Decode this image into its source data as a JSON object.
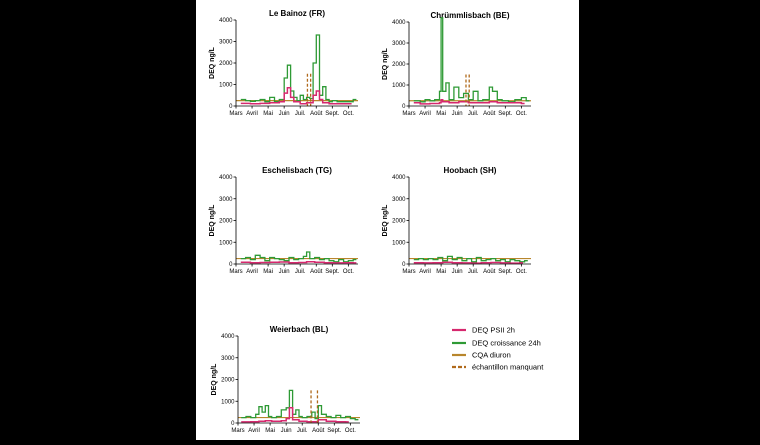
{
  "colors": {
    "psii": "#d6286e",
    "growth": "#2e9a35",
    "cqa": "#b8862c",
    "missing": "#b06a1c",
    "axis": "#000000",
    "background_outer": "#000000",
    "background_figure": "#ffffff"
  },
  "legend": {
    "items": [
      {
        "key": "psii",
        "label": "DEQ PSII 2h"
      },
      {
        "key": "growth",
        "label": "DEQ croissance 24h"
      },
      {
        "key": "cqa",
        "label": "CQA diuron"
      },
      {
        "key": "missing",
        "label": "échantillon manquant"
      }
    ]
  },
  "chart_data": [
    {
      "type": "line",
      "title": "Le Bainoz (FR)",
      "ylabel": "DEQ ng/L",
      "xlabel": "",
      "ylim": [
        0,
        4000
      ],
      "yticks": [
        0,
        1000,
        2000,
        3000,
        4000
      ],
      "xlim": [
        0,
        7.6
      ],
      "xtick_labels": [
        "Mars",
        "Avril",
        "Mai",
        "Juin",
        "Juil.",
        "Août",
        "Sept.",
        "Oct."
      ],
      "cqa": 250,
      "missing": [
        4.45,
        4.65
      ],
      "series": [
        {
          "key": "growth",
          "name": "DEQ croissance 24h",
          "step": true,
          "x": [
            0.3,
            0.6,
            0.9,
            1.2,
            1.5,
            1.8,
            2.1,
            2.4,
            2.7,
            3.0,
            3.2,
            3.4,
            3.6,
            3.8,
            4.0,
            4.2,
            4.4,
            4.6,
            4.8,
            5.0,
            5.2,
            5.4,
            5.6,
            5.8,
            6.0,
            6.3,
            6.6,
            7.0,
            7.3
          ],
          "y": [
            300,
            250,
            220,
            250,
            300,
            200,
            400,
            200,
            300,
            1300,
            1900,
            700,
            400,
            250,
            500,
            300,
            400,
            350,
            2000,
            3300,
            500,
            900,
            300,
            200,
            250,
            200,
            200,
            200,
            300
          ]
        },
        {
          "key": "psii",
          "name": "DEQ PSII 2h",
          "step": true,
          "x": [
            0.3,
            0.9,
            1.5,
            2.1,
            2.7,
            3.0,
            3.2,
            3.4,
            3.6,
            4.0,
            4.4,
            4.8,
            5.0,
            5.2,
            5.4,
            5.8,
            6.3,
            7.0
          ],
          "y": [
            120,
            100,
            120,
            150,
            200,
            600,
            850,
            400,
            200,
            100,
            150,
            500,
            700,
            300,
            150,
            100,
            100,
            100
          ]
        }
      ]
    },
    {
      "type": "line",
      "title": "Chrümmlisbach (BE)",
      "ylabel": "DEQ ng/L",
      "xlabel": "",
      "ylim": [
        0,
        4000
      ],
      "yticks": [
        0,
        1000,
        2000,
        3000,
        4000
      ],
      "xlim": [
        0,
        7.6
      ],
      "xtick_labels": [
        "Mars",
        "Avril",
        "Mai",
        "Juin",
        "Juil.",
        "Août",
        "Sept.",
        "Oct."
      ],
      "cqa": 250,
      "missing": [
        3.55,
        3.75
      ],
      "series": [
        {
          "key": "growth",
          "name": "DEQ croissance 24h",
          "step": true,
          "x": [
            0.3,
            0.7,
            1.0,
            1.3,
            1.6,
            1.9,
            2.0,
            2.1,
            2.3,
            2.5,
            2.8,
            3.1,
            3.4,
            3.7,
            4.0,
            4.3,
            4.6,
            5.0,
            5.2,
            5.5,
            5.8,
            6.2,
            6.6,
            7.0,
            7.3
          ],
          "y": [
            250,
            200,
            300,
            250,
            300,
            700,
            4200,
            700,
            1100,
            300,
            900,
            400,
            600,
            300,
            700,
            250,
            300,
            900,
            700,
            300,
            250,
            200,
            300,
            400,
            250
          ]
        },
        {
          "key": "psii",
          "name": "DEQ PSII 2h",
          "step": true,
          "x": [
            0.3,
            0.7,
            1.3,
            1.9,
            2.0,
            2.1,
            2.5,
            3.1,
            3.7,
            4.3,
            5.0,
            5.5,
            6.2,
            7.0
          ],
          "y": [
            150,
            100,
            120,
            150,
            300,
            200,
            150,
            200,
            150,
            150,
            200,
            150,
            150,
            120
          ]
        }
      ]
    },
    {
      "type": "line",
      "title": "Eschelisbach (TG)",
      "ylabel": "DEQ ng/L",
      "xlabel": "",
      "ylim": [
        0,
        4000
      ],
      "yticks": [
        0,
        1000,
        2000,
        3000,
        4000
      ],
      "xlim": [
        0,
        7.6
      ],
      "xtick_labels": [
        "Mars",
        "Avril",
        "Mai",
        "Juin",
        "Juil.",
        "Août",
        "Sept.",
        "Oct."
      ],
      "cqa": 250,
      "missing": [],
      "series": [
        {
          "key": "growth",
          "name": "DEQ croissance 24h",
          "step": true,
          "x": [
            0.3,
            0.6,
            0.9,
            1.2,
            1.5,
            1.8,
            2.1,
            2.4,
            2.7,
            3.0,
            3.3,
            3.6,
            3.9,
            4.2,
            4.4,
            4.6,
            4.9,
            5.2,
            5.5,
            5.8,
            6.1,
            6.4,
            6.7,
            7.0,
            7.3
          ],
          "y": [
            250,
            300,
            200,
            400,
            300,
            150,
            300,
            250,
            200,
            150,
            300,
            200,
            250,
            350,
            550,
            250,
            300,
            200,
            250,
            150,
            100,
            200,
            100,
            150,
            200
          ]
        },
        {
          "key": "psii",
          "name": "DEQ PSII 2h",
          "step": true,
          "x": [
            0.3,
            0.9,
            1.5,
            2.1,
            2.7,
            3.3,
            3.9,
            4.4,
            4.9,
            5.5,
            6.1,
            6.7,
            7.3
          ],
          "y": [
            80,
            60,
            70,
            80,
            90,
            60,
            70,
            100,
            80,
            60,
            50,
            60,
            50
          ]
        }
      ]
    },
    {
      "type": "line",
      "title": "Hoobach (SH)",
      "ylabel": "DEQ ng/L",
      "xlabel": "",
      "ylim": [
        0,
        4000
      ],
      "yticks": [
        0,
        1000,
        2000,
        3000,
        4000
      ],
      "xlim": [
        0,
        7.6
      ],
      "xtick_labels": [
        "Mars",
        "Avril",
        "Mai",
        "Juin",
        "Juil.",
        "Août",
        "Sept.",
        "Oct."
      ],
      "cqa": 250,
      "missing": [],
      "series": [
        {
          "key": "growth",
          "name": "DEQ croissance 24h",
          "step": true,
          "x": [
            0.3,
            0.6,
            0.9,
            1.2,
            1.5,
            1.8,
            2.1,
            2.4,
            2.7,
            3.0,
            3.3,
            3.6,
            3.9,
            4.2,
            4.5,
            4.8,
            5.1,
            5.4,
            5.7,
            6.0,
            6.3,
            6.6,
            6.9,
            7.2
          ],
          "y": [
            200,
            250,
            200,
            250,
            200,
            300,
            150,
            350,
            200,
            300,
            150,
            250,
            100,
            300,
            150,
            200,
            250,
            150,
            200,
            100,
            200,
            150,
            100,
            150
          ]
        },
        {
          "key": "psii",
          "name": "DEQ PSII 2h",
          "step": true,
          "x": [
            0.3,
            0.9,
            1.5,
            2.1,
            2.7,
            3.3,
            3.9,
            4.5,
            5.1,
            5.7,
            6.3,
            6.9
          ],
          "y": [
            60,
            50,
            60,
            80,
            60,
            50,
            40,
            60,
            70,
            50,
            40,
            50
          ]
        }
      ]
    },
    {
      "type": "line",
      "title": "Weierbach (BL)",
      "ylabel": "DEQ ng/L",
      "xlabel": "",
      "ylim": [
        0,
        4000
      ],
      "yticks": [
        0,
        1000,
        2000,
        3000,
        4000
      ],
      "xlim": [
        0,
        7.6
      ],
      "xtick_labels": [
        "Mars",
        "Avril",
        "Mai",
        "Juin",
        "Juil.",
        "Août",
        "Sept.",
        "Oct."
      ],
      "cqa": 250,
      "missing": [
        4.55,
        4.95
      ],
      "series": [
        {
          "key": "growth",
          "name": "DEQ croissance 24h",
          "step": true,
          "x": [
            0.2,
            0.5,
            0.8,
            1.1,
            1.3,
            1.5,
            1.7,
            1.9,
            2.1,
            2.4,
            2.7,
            3.0,
            3.2,
            3.4,
            3.6,
            3.8,
            4.0,
            4.3,
            4.6,
            4.8,
            5.0,
            5.2,
            5.5,
            5.8,
            6.1,
            6.4,
            6.7,
            7.0,
            7.3
          ],
          "y": [
            250,
            300,
            250,
            400,
            750,
            500,
            800,
            300,
            250,
            300,
            600,
            700,
            1500,
            400,
            600,
            300,
            250,
            300,
            500,
            200,
            800,
            400,
            300,
            250,
            350,
            250,
            300,
            200,
            150
          ]
        },
        {
          "key": "psii",
          "name": "DEQ PSII 2h",
          "step": true,
          "x": [
            0.2,
            0.8,
            1.3,
            1.7,
            2.1,
            2.7,
            3.0,
            3.2,
            3.4,
            3.8,
            4.3,
            5.0,
            5.5,
            6.1,
            6.7
          ],
          "y": [
            50,
            60,
            80,
            100,
            80,
            100,
            200,
            700,
            150,
            80,
            60,
            150,
            80,
            60,
            50
          ]
        }
      ]
    }
  ]
}
